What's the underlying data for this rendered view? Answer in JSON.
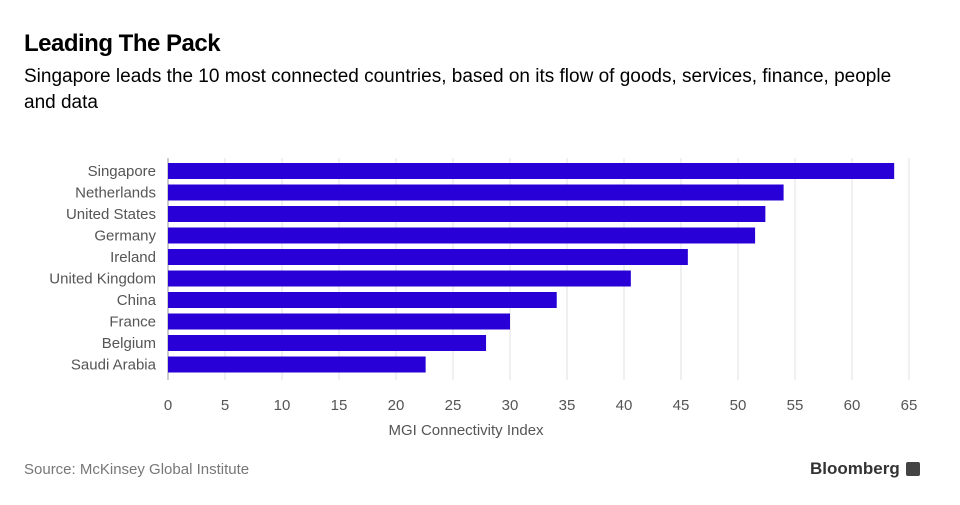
{
  "title": "Leading The Pack",
  "subtitle": "Singapore leads the 10 most connected countries, based on its flow of goods, services, finance, people and data",
  "source": "Source: McKinsey Global Institute",
  "logo": "Bloomberg",
  "colors": {
    "bar": "#2800d7",
    "grid": "#e0e0e0",
    "text": "#555555"
  },
  "chart_data": {
    "type": "bar",
    "orientation": "horizontal",
    "categories": [
      "Singapore",
      "Netherlands",
      "United States",
      "Germany",
      "Ireland",
      "United Kingdom",
      "China",
      "France",
      "Belgium",
      "Saudi Arabia"
    ],
    "values": [
      63.7,
      54.0,
      52.4,
      51.5,
      45.6,
      40.6,
      34.1,
      30.0,
      27.9,
      22.6
    ],
    "xlabel": "MGI Connectivity Index",
    "xlim": [
      0,
      65
    ],
    "xticks": [
      0,
      5,
      10,
      15,
      20,
      25,
      30,
      35,
      40,
      45,
      50,
      55,
      60,
      65
    ],
    "grid": true
  }
}
